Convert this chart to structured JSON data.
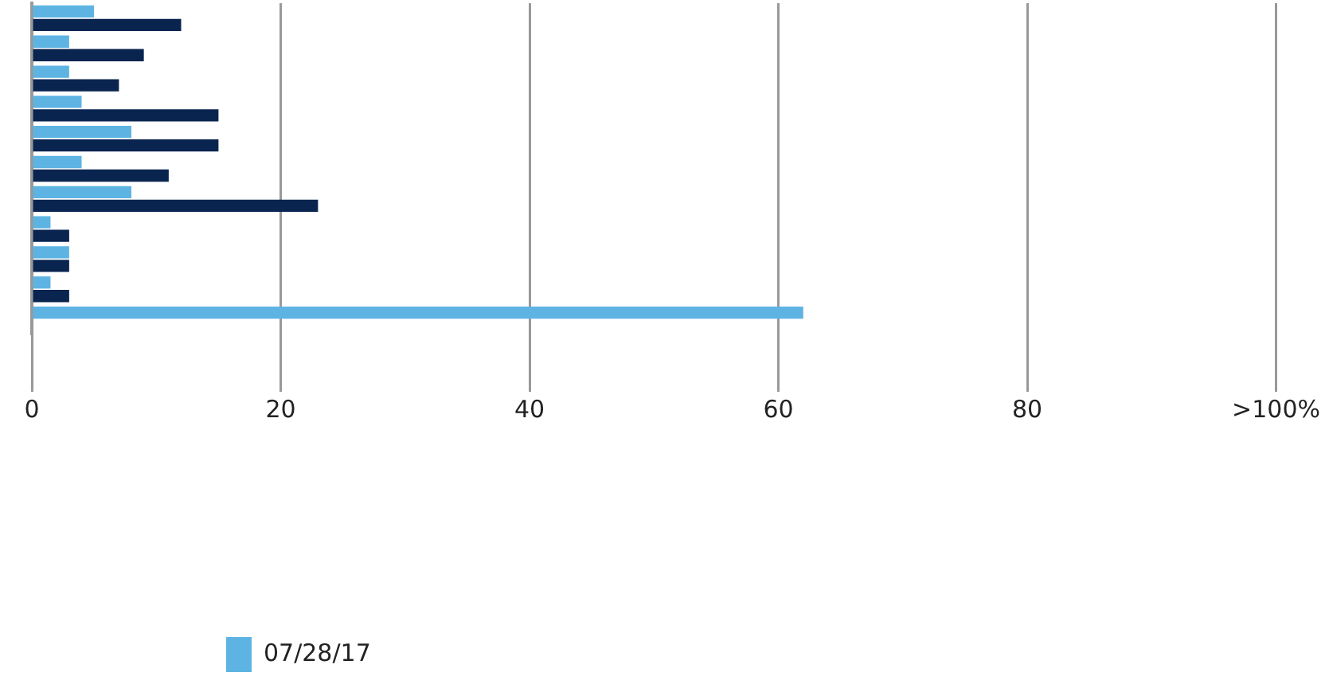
{
  "chart_data": {
    "type": "bar",
    "orientation": "horizontal",
    "categories": [
      null,
      null,
      null,
      null,
      null,
      null,
      null,
      null,
      null,
      null,
      null
    ],
    "series": [
      {
        "name": "07/28/17",
        "color": "#5db4e3",
        "values": [
          5,
          3,
          3,
          4,
          8,
          4,
          8,
          1.5,
          3,
          1.5,
          62
        ]
      },
      {
        "color": "#0a2450",
        "values": [
          12,
          9,
          7,
          15,
          15,
          11,
          23,
          3,
          3,
          3,
          null
        ]
      }
    ],
    "xlim": [
      0,
      100
    ],
    "xticks": [
      0,
      20,
      40,
      60,
      80,
      {
        "value": 100,
        "label": ">100%"
      }
    ],
    "grid": "x",
    "legend": "bottom left"
  }
}
